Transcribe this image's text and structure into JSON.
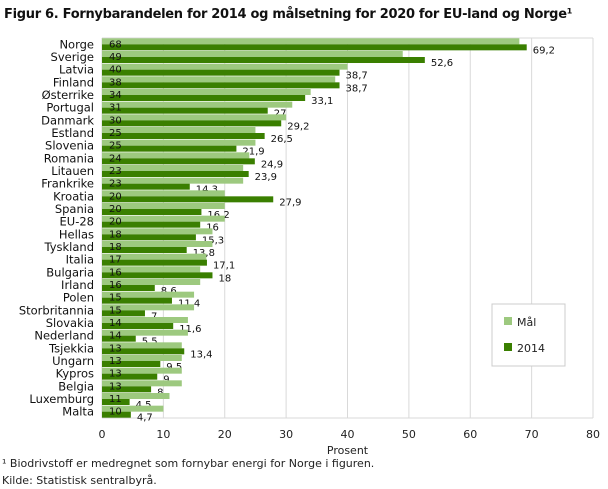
{
  "title": "Figur 6. Fornybarandelen for 2014 og målsetning for 2020 for EU-land og Norge¹",
  "footnote": "¹ Biodrivstoff er medregnet som fornybar energi for Norge i figuren.",
  "source": "Kilde: Statistisk sentralbyrå.",
  "chart_data": {
    "type": "bar",
    "orientation": "horizontal",
    "xlabel": "Prosent",
    "xlim": [
      0,
      80
    ],
    "xticks": [
      0,
      10,
      20,
      30,
      40,
      50,
      60,
      70,
      80
    ],
    "grid": true,
    "legend_position": "bottom-right",
    "categories": [
      "Norge",
      "Sverige",
      "Latvia",
      "Finland",
      "Østerrike",
      "Portugal",
      "Danmark",
      "Estland",
      "Slovenia",
      "Romania",
      "Litauen",
      "Frankrike",
      "Kroatia",
      "Spania",
      "EU-28",
      "Hellas",
      "Tyskland",
      "Italia",
      "Bulgaria",
      "Irland",
      "Polen",
      "Storbritannia",
      "Slovakia",
      "Nederland",
      "Tsjekkia",
      "Ungarn",
      "Kypros",
      "Belgia",
      "Luxemburg",
      "Malta"
    ],
    "series": [
      {
        "name": "Mål",
        "color": "#9dc97f",
        "values": [
          68,
          49,
          40,
          38,
          34,
          31,
          30,
          25,
          25,
          24,
          23,
          23,
          20,
          20,
          20,
          18,
          18,
          17,
          16,
          16,
          15,
          15,
          14,
          14,
          13,
          13,
          13,
          13,
          11,
          10
        ],
        "labels": [
          "68",
          "49",
          "40",
          "38",
          "34",
          "31",
          "30",
          "25",
          "25",
          "24",
          "23",
          "23",
          "20",
          "20",
          "20",
          "18",
          "18",
          "17",
          "16",
          "16",
          "15",
          "15",
          "14",
          "14",
          "13",
          "13",
          "13",
          "13",
          "11",
          "10"
        ]
      },
      {
        "name": "2014",
        "color": "#3a7f00",
        "values": [
          69.2,
          52.6,
          38.7,
          38.7,
          33.1,
          27,
          29.2,
          26.5,
          21.9,
          24.9,
          23.9,
          14.3,
          27.9,
          16.2,
          16,
          15.3,
          13.8,
          17.1,
          18,
          8.6,
          11.4,
          7,
          11.6,
          5.5,
          13.4,
          9.5,
          9,
          8,
          4.5,
          4.7
        ],
        "labels": [
          "69,2",
          "52,6",
          "38,7",
          "38,7",
          "33,1",
          "27",
          "29,2",
          "26,5",
          "21,9",
          "24,9",
          "23,9",
          "14,3",
          "27,9",
          "16,2",
          "16",
          "15,3",
          "13,8",
          "17,1",
          "18",
          "8,6",
          "11,4",
          "7",
          "11,6",
          "5,5",
          "13,4",
          "9,5",
          "9",
          "8",
          "4,5",
          "4,7"
        ]
      }
    ]
  }
}
